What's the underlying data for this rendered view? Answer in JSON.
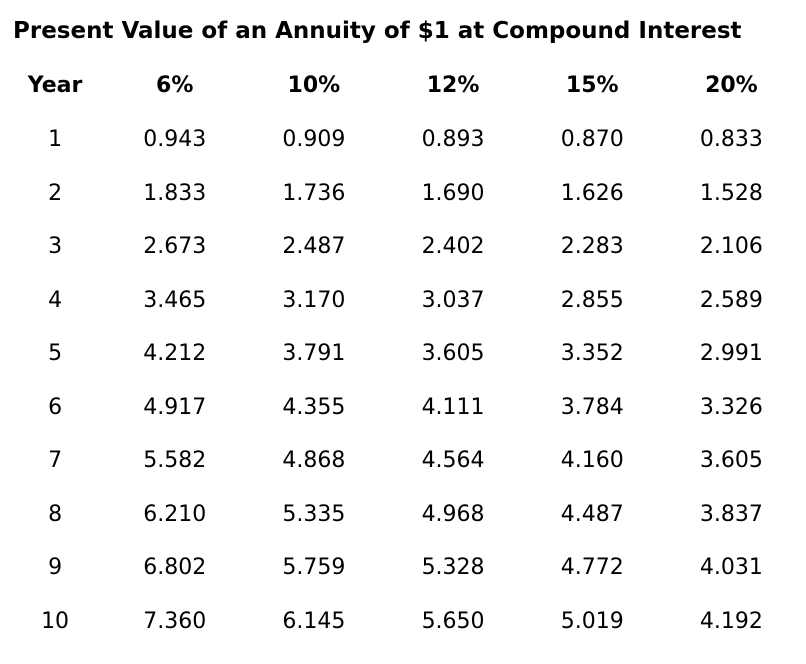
{
  "title": "Present Value of an Annuity of $1 at Compound Interest",
  "colors": {
    "background": "#ffffff",
    "text": "#000000"
  },
  "chart_data": {
    "type": "table",
    "title": "Present Value of an Annuity of $1 at Compound Interest",
    "columns": [
      "Year",
      "6%",
      "10%",
      "12%",
      "15%",
      "20%"
    ],
    "rows": [
      [
        "1",
        "0.943",
        "0.909",
        "0.893",
        "0.870",
        "0.833"
      ],
      [
        "2",
        "1.833",
        "1.736",
        "1.690",
        "1.626",
        "1.528"
      ],
      [
        "3",
        "2.673",
        "2.487",
        "2.402",
        "2.283",
        "2.106"
      ],
      [
        "4",
        "3.465",
        "3.170",
        "3.037",
        "2.855",
        "2.589"
      ],
      [
        "5",
        "4.212",
        "3.791",
        "3.605",
        "3.352",
        "2.991"
      ],
      [
        "6",
        "4.917",
        "4.355",
        "4.111",
        "3.784",
        "3.326"
      ],
      [
        "7",
        "5.582",
        "4.868",
        "4.564",
        "4.160",
        "3.605"
      ],
      [
        "8",
        "6.210",
        "5.335",
        "4.968",
        "4.487",
        "3.837"
      ],
      [
        "9",
        "6.802",
        "5.759",
        "5.328",
        "4.772",
        "4.031"
      ],
      [
        "10",
        "7.360",
        "6.145",
        "5.650",
        "5.019",
        "4.192"
      ]
    ]
  }
}
